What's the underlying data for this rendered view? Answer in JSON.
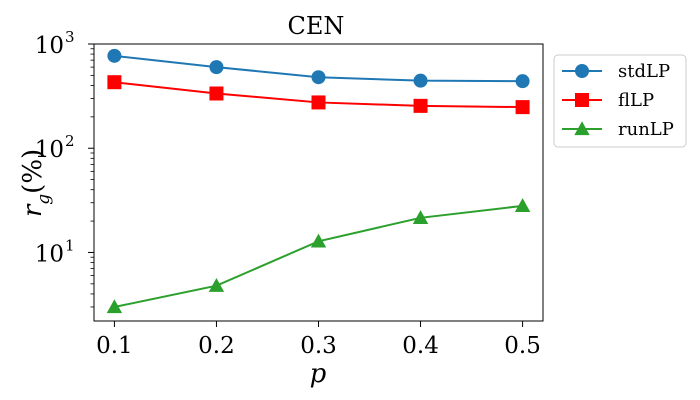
{
  "chart_data": {
    "type": "line",
    "title": "CEN",
    "xlabel": "p",
    "ylabel_main": "r",
    "ylabel_sub": "g",
    "ylabel_unit": "(%)",
    "yscale": "log",
    "xlim": [
      0.08,
      0.52
    ],
    "ylim": [
      2.2,
      1000
    ],
    "x": [
      0.1,
      0.2,
      0.3,
      0.4,
      0.5
    ],
    "x_tick_labels": [
      "0.1",
      "0.2",
      "0.3",
      "0.4",
      "0.5"
    ],
    "y_ticks": [
      {
        "value": 10,
        "base": "10",
        "exp": "1"
      },
      {
        "value": 100,
        "base": "10",
        "exp": "2"
      },
      {
        "value": 1000,
        "base": "10",
        "exp": "3"
      }
    ],
    "legend_position": "outside-right-top",
    "series": [
      {
        "name": "stdLP",
        "color": "#1f77b4",
        "marker": "circle",
        "values": [
          770,
          600,
          480,
          445,
          440
        ]
      },
      {
        "name": "flLP",
        "color": "#ff0000",
        "marker": "square",
        "values": [
          430,
          335,
          275,
          255,
          248
        ]
      },
      {
        "name": "runLP",
        "color": "#2ca02c",
        "marker": "triangle",
        "values": [
          3.0,
          4.8,
          12.8,
          21.5,
          28.0
        ]
      }
    ]
  }
}
